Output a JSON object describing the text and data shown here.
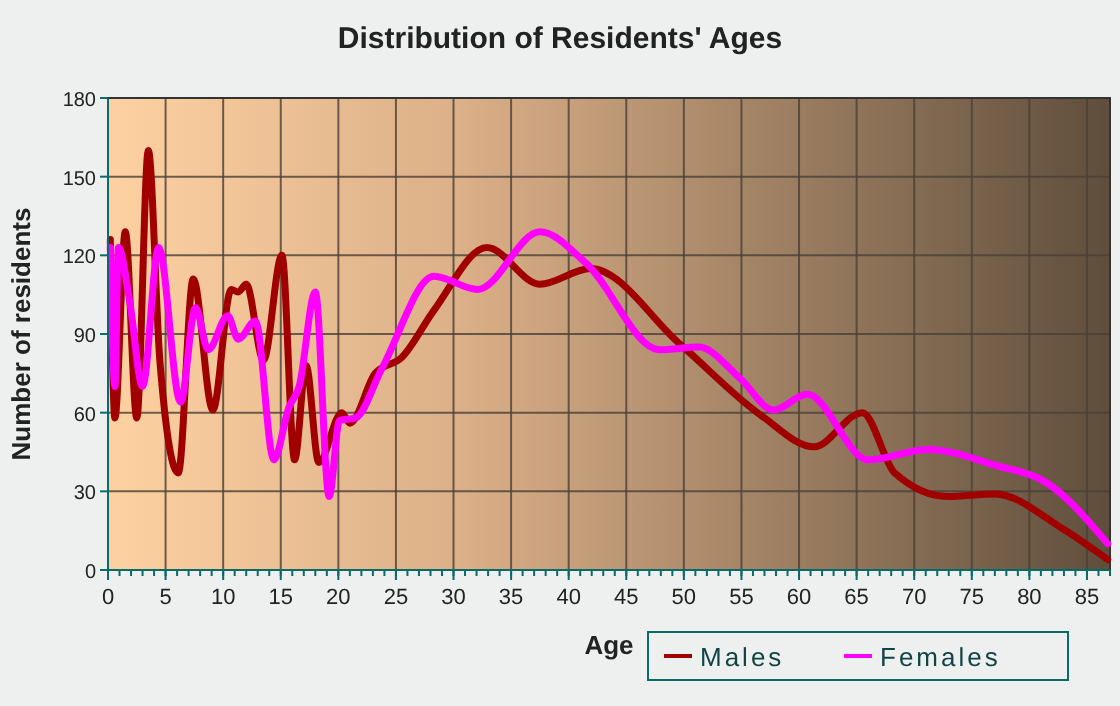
{
  "chart_data": {
    "type": "line",
    "title": "Distribution of Residents' Ages",
    "xlabel": "Age",
    "ylabel": "Number of residents",
    "xlim": [
      0,
      87
    ],
    "xticks": [
      0,
      5,
      10,
      15,
      20,
      25,
      30,
      35,
      40,
      45,
      50,
      55,
      60,
      65,
      70,
      75,
      80,
      85
    ],
    "ylim": [
      0,
      180
    ],
    "yticks": [
      0,
      30,
      60,
      90,
      120,
      150,
      180
    ],
    "grid": true,
    "legend": "bottom right",
    "series": [
      {
        "name": "Males",
        "color": "#a00000",
        "x": [
          0.2,
          0.6,
          1.5,
          2.5,
          3.5,
          4.5,
          6.1,
          7.4,
          9.1,
          10.7,
          11.3,
          12,
          13.5,
          15.1,
          16.2,
          17.2,
          18.3,
          20.3,
          21,
          23.2,
          25.5,
          28.3,
          32.9,
          37.5,
          41.9,
          49.7,
          56.7,
          61.3,
          65.5,
          68.3,
          72.9,
          77,
          82.8,
          86.8
        ],
        "values": [
          126,
          58,
          129,
          58,
          160,
          80,
          37,
          111,
          61,
          107,
          106,
          109,
          80,
          120,
          42,
          78,
          41,
          60,
          56,
          75,
          81,
          99,
          123,
          109,
          115,
          86,
          59,
          47,
          60,
          37,
          28,
          29,
          16,
          4
        ]
      },
      {
        "name": "Females",
        "color": "#ff00ff",
        "x": [
          0.2,
          0.6,
          0.9,
          1.9,
          3,
          4.4,
          6.3,
          7.6,
          8.7,
          10.4,
          11.3,
          12.8,
          14.4,
          15.7,
          16.6,
          18,
          19.2,
          20.1,
          21.5,
          23.8,
          28.3,
          32.1,
          37.5,
          41.5,
          47.9,
          51.3,
          54.9,
          57.8,
          60.7,
          66,
          71.2,
          77,
          81.6,
          86.8
        ],
        "values": [
          123,
          70,
          123,
          102,
          70,
          123,
          64,
          100,
          84,
          97,
          88,
          95,
          42,
          62,
          70,
          106,
          28,
          57,
          58,
          77,
          112,
          107,
          129,
          117,
          84,
          85,
          73,
          61,
          67,
          42,
          46,
          40,
          33,
          10
        ]
      }
    ]
  }
}
